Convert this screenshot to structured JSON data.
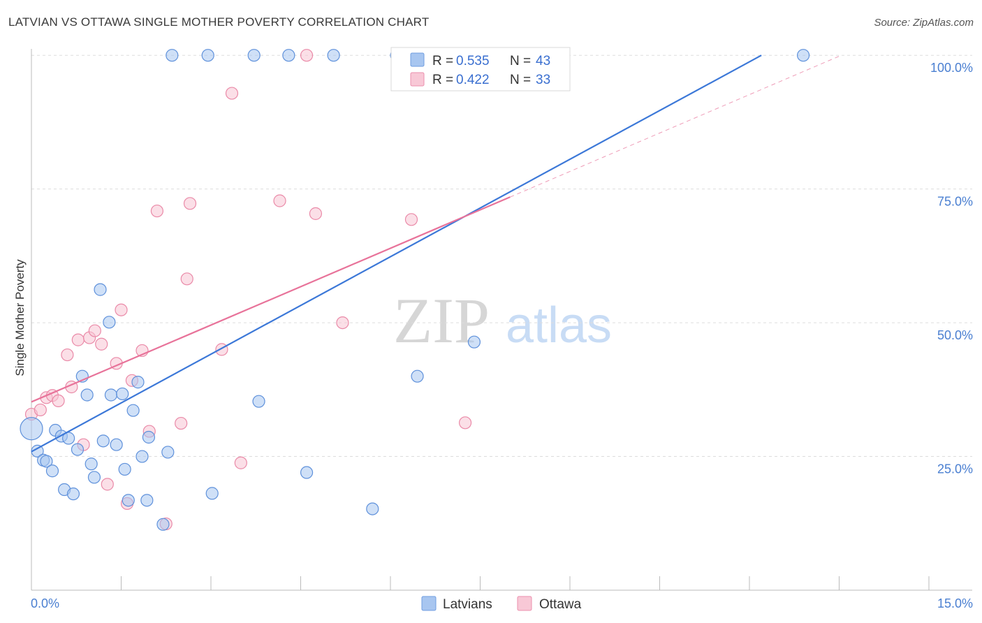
{
  "header": {
    "title": "LATVIAN VS OTTAWA SINGLE MOTHER POVERTY CORRELATION CHART",
    "source": "Source: ZipAtlas.com"
  },
  "watermark": {
    "zip": "ZIP",
    "atlas": "atlas"
  },
  "legend": {
    "r_label": "R =",
    "n_label": "N =",
    "rows": [
      {
        "r": "0.535",
        "n": "43",
        "color": "#a8c6f0"
      },
      {
        "r": "0.422",
        "n": "33",
        "color": "#f5b8ca"
      }
    ]
  },
  "bottom_legend": {
    "items": [
      "Latvians",
      "Ottawa"
    ]
  },
  "chart_data": {
    "type": "scatter",
    "title": "LATVIAN VS OTTAWA SINGLE MOTHER POVERTY CORRELATION CHART",
    "ylabel": "Single Mother Poverty",
    "xlabel": "",
    "x_tick_labels": [
      "0.0%",
      "15.0%"
    ],
    "y_tick_labels": [
      "25.0%",
      "50.0%",
      "75.0%",
      "100.0%"
    ],
    "y_ticks": [
      25,
      50,
      75,
      100
    ],
    "xlim": [
      0,
      15
    ],
    "ylim": [
      0,
      102.2
    ],
    "grid": true,
    "legend_position": "top-center",
    "colors": {
      "latvians": "#3c78d8",
      "ottawa": "#e8739a"
    },
    "series": [
      {
        "name": "Latvians",
        "color": "#3c78d8",
        "trend": {
          "x0": 0,
          "y0": 25.9,
          "x1": 12.2,
          "y1": 100
        },
        "points": [
          [
            0.0,
            30.2
          ],
          [
            0.1,
            26.0
          ],
          [
            0.2,
            24.3
          ],
          [
            0.25,
            24.1
          ],
          [
            0.35,
            22.3
          ],
          [
            0.4,
            29.9
          ],
          [
            0.5,
            28.8
          ],
          [
            0.55,
            18.8
          ],
          [
            0.62,
            28.4
          ],
          [
            0.7,
            18.0
          ],
          [
            0.77,
            26.3
          ],
          [
            0.85,
            40.0
          ],
          [
            0.93,
            36.5
          ],
          [
            1.0,
            23.6
          ],
          [
            1.05,
            21.1
          ],
          [
            1.15,
            56.2
          ],
          [
            1.2,
            27.9
          ],
          [
            1.3,
            50.1
          ],
          [
            1.33,
            36.5
          ],
          [
            1.42,
            27.2
          ],
          [
            1.52,
            36.7
          ],
          [
            1.56,
            22.6
          ],
          [
            1.62,
            16.8
          ],
          [
            1.7,
            33.6
          ],
          [
            1.78,
            38.9
          ],
          [
            1.85,
            25.0
          ],
          [
            1.93,
            16.8
          ],
          [
            1.96,
            28.6
          ],
          [
            2.2,
            12.3
          ],
          [
            2.28,
            25.8
          ],
          [
            2.35,
            100.0
          ],
          [
            2.95,
            100.0
          ],
          [
            3.02,
            18.1
          ],
          [
            3.72,
            100.0
          ],
          [
            3.8,
            35.3
          ],
          [
            4.3,
            100.0
          ],
          [
            4.6,
            22.0
          ],
          [
            5.05,
            100.0
          ],
          [
            5.7,
            15.2
          ],
          [
            6.1,
            100.0
          ],
          [
            6.45,
            40.0
          ],
          [
            7.4,
            46.4
          ],
          [
            12.9,
            100.0
          ]
        ]
      },
      {
        "name": "Ottawa",
        "color": "#e8739a",
        "trend": {
          "x0": 0,
          "y0": 35.2,
          "x1": 8.0,
          "y1": 73.5
        },
        "points": [
          [
            0.0,
            32.9
          ],
          [
            0.15,
            33.7
          ],
          [
            0.25,
            36.0
          ],
          [
            0.35,
            36.4
          ],
          [
            0.45,
            35.4
          ],
          [
            0.6,
            44.0
          ],
          [
            0.67,
            38.0
          ],
          [
            0.78,
            46.8
          ],
          [
            0.87,
            27.2
          ],
          [
            0.97,
            47.2
          ],
          [
            1.06,
            48.5
          ],
          [
            1.17,
            46.0
          ],
          [
            1.27,
            19.8
          ],
          [
            1.42,
            42.4
          ],
          [
            1.5,
            52.4
          ],
          [
            1.6,
            16.2
          ],
          [
            1.68,
            39.2
          ],
          [
            1.85,
            44.8
          ],
          [
            1.97,
            29.7
          ],
          [
            2.1,
            70.9
          ],
          [
            2.25,
            12.4
          ],
          [
            2.5,
            31.2
          ],
          [
            2.6,
            58.2
          ],
          [
            2.65,
            72.3
          ],
          [
            3.18,
            45.0
          ],
          [
            3.35,
            92.9
          ],
          [
            3.5,
            23.8
          ],
          [
            4.15,
            72.8
          ],
          [
            4.6,
            100.0
          ],
          [
            4.75,
            70.4
          ],
          [
            5.2,
            50.0
          ],
          [
            6.35,
            69.3
          ],
          [
            7.25,
            31.3
          ]
        ]
      }
    ]
  }
}
